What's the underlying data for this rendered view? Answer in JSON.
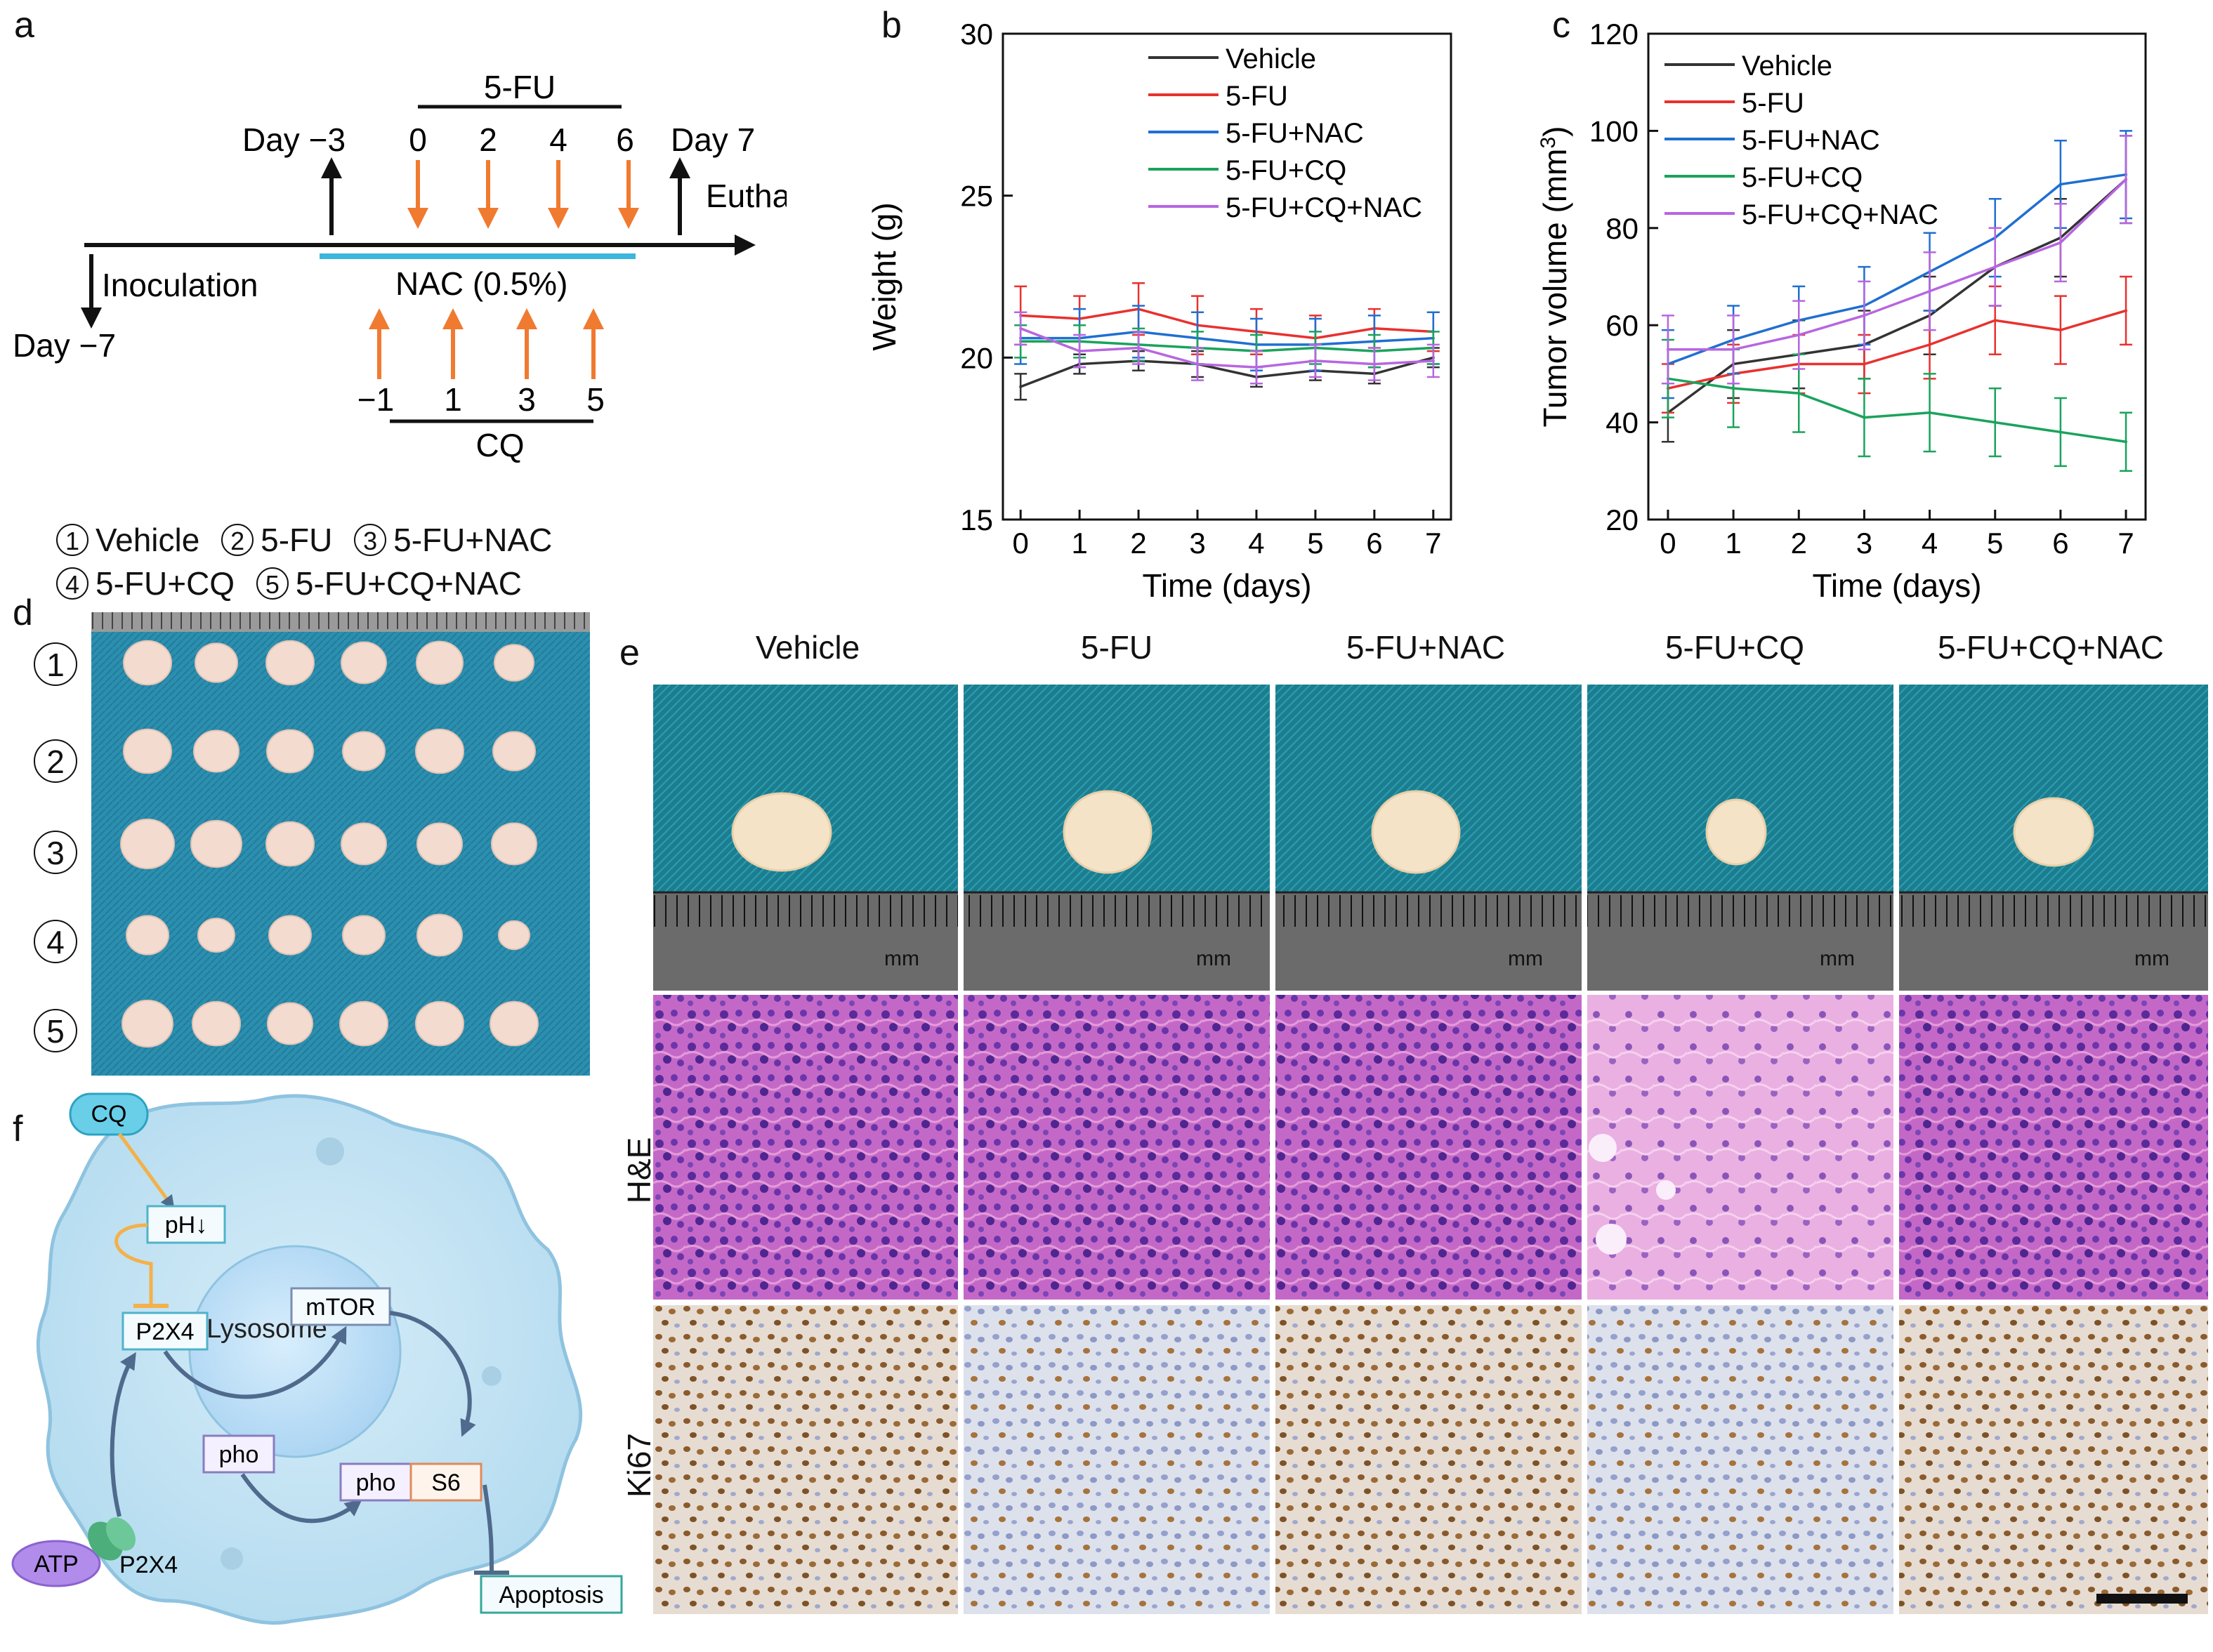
{
  "panel_labels": {
    "a": "a",
    "b": "b",
    "c": "c",
    "d": "d",
    "e": "e",
    "f": "f"
  },
  "timeline": {
    "drug1": "5-FU",
    "drug1_days": [
      "0",
      "2",
      "4",
      "6"
    ],
    "day_start": "Day −3",
    "day_end": "Day 7",
    "euthanize": "Euthanize",
    "inoculation": "Inoculation",
    "day_inoc": "Day −7",
    "nac": "NAC (0.5%)",
    "cq_days": [
      "−1",
      "1",
      "3",
      "5"
    ],
    "cq": "CQ"
  },
  "groups_legend": [
    {
      "num": "1",
      "label": "Vehicle"
    },
    {
      "num": "2",
      "label": "5-FU"
    },
    {
      "num": "3",
      "label": "5-FU+NAC"
    },
    {
      "num": "4",
      "label": "5-FU+CQ"
    },
    {
      "num": "5",
      "label": "5-FU+CQ+NAC"
    }
  ],
  "chart_data": [
    {
      "type": "line",
      "title": "",
      "xlabel": "Time (days)",
      "ylabel": "Weight (g)",
      "x": [
        0,
        1,
        2,
        3,
        4,
        5,
        6,
        7
      ],
      "xlim": [
        -0.3,
        7.3
      ],
      "ylim": [
        15,
        30
      ],
      "yticks": [
        15,
        20,
        25,
        30
      ],
      "series": [
        {
          "name": "Vehicle",
          "color": "#333333",
          "values": [
            19.1,
            19.8,
            19.9,
            19.8,
            19.4,
            19.6,
            19.5,
            20.0
          ],
          "err": [
            0.4,
            0.3,
            0.3,
            0.4,
            0.3,
            0.3,
            0.3,
            0.3
          ]
        },
        {
          "name": "5-FU",
          "color": "#e8312f",
          "values": [
            21.3,
            21.2,
            21.5,
            21.0,
            20.8,
            20.6,
            20.9,
            20.8
          ],
          "err": [
            0.9,
            0.7,
            0.8,
            0.9,
            0.7,
            0.7,
            0.6,
            0.6
          ]
        },
        {
          "name": "5-FU+NAC",
          "color": "#1f6fd1",
          "values": [
            20.6,
            20.6,
            20.8,
            20.6,
            20.4,
            20.4,
            20.5,
            20.6
          ],
          "err": [
            0.8,
            0.9,
            0.8,
            0.8,
            0.8,
            0.8,
            0.8,
            0.8
          ]
        },
        {
          "name": "5-FU+CQ",
          "color": "#1aa35c",
          "values": [
            20.5,
            20.5,
            20.4,
            20.3,
            20.2,
            20.3,
            20.2,
            20.3
          ],
          "err": [
            0.5,
            0.5,
            0.5,
            0.5,
            0.5,
            0.5,
            0.5,
            0.5
          ]
        },
        {
          "name": "5-FU+CQ+NAC",
          "color": "#b766e0",
          "values": [
            20.9,
            20.2,
            20.3,
            19.8,
            19.7,
            19.9,
            19.8,
            19.9
          ],
          "err": [
            0.5,
            0.5,
            0.5,
            0.5,
            0.5,
            0.5,
            0.5,
            0.5
          ]
        }
      ]
    },
    {
      "type": "line",
      "title": "",
      "xlabel": "Time (days)",
      "ylabel": "Tumor volume (mm",
      "ylabel_sup": "3",
      "ylabel_end": ")",
      "x": [
        0,
        1,
        2,
        3,
        4,
        5,
        6,
        7
      ],
      "xlim": [
        -0.3,
        7.3
      ],
      "ylim": [
        20,
        120
      ],
      "yticks": [
        20,
        40,
        60,
        80,
        100,
        120
      ],
      "series": [
        {
          "name": "Vehicle",
          "color": "#333333",
          "values": [
            42,
            52,
            54,
            56,
            62,
            72,
            78,
            90
          ],
          "err": [
            6,
            7,
            7,
            7,
            8,
            8,
            8,
            9
          ]
        },
        {
          "name": "5-FU",
          "color": "#e8312f",
          "values": [
            47,
            50,
            52,
            52,
            56,
            61,
            59,
            63
          ],
          "err": [
            5,
            6,
            6,
            6,
            7,
            7,
            7,
            7
          ]
        },
        {
          "name": "5-FU+NAC",
          "color": "#1f6fd1",
          "values": [
            52,
            57,
            61,
            64,
            71,
            78,
            89,
            91
          ],
          "err": [
            7,
            7,
            7,
            8,
            8,
            8,
            9,
            9
          ]
        },
        {
          "name": "5-FU+CQ",
          "color": "#1aa35c",
          "values": [
            49,
            47,
            46,
            41,
            42,
            40,
            38,
            36
          ],
          "err": [
            8,
            8,
            8,
            8,
            8,
            7,
            7,
            6
          ]
        },
        {
          "name": "5-FU+CQ+NAC",
          "color": "#b766e0",
          "values": [
            55,
            55,
            58,
            62,
            67,
            72,
            77,
            90
          ],
          "err": [
            7,
            7,
            7,
            7,
            8,
            8,
            8,
            9
          ]
        }
      ]
    }
  ],
  "panel_d": {
    "rows": [
      "1",
      "2",
      "3",
      "4",
      "5"
    ]
  },
  "panel_e": {
    "columns": [
      "Vehicle",
      "5-FU",
      "5-FU+NAC",
      "5-FU+CQ",
      "5-FU+CQ+NAC"
    ],
    "rows": [
      "H&E",
      "Ki67"
    ],
    "ruler_unit": "mm"
  },
  "panel_f": {
    "cq": "CQ",
    "ph": "pH↓",
    "lysosome": "Lysosome",
    "p2x4_lyso": "P2X4",
    "mtor": "mTOR",
    "pho1": "pho",
    "pho2": "pho",
    "s6": "S6",
    "atp": "ATP",
    "p2x4_mem": "P2X4",
    "apoptosis": "Apoptosis"
  },
  "colors": {
    "orange": "#f07a30",
    "cyan": "#3cb6dc",
    "board": "#2b8fb0"
  }
}
